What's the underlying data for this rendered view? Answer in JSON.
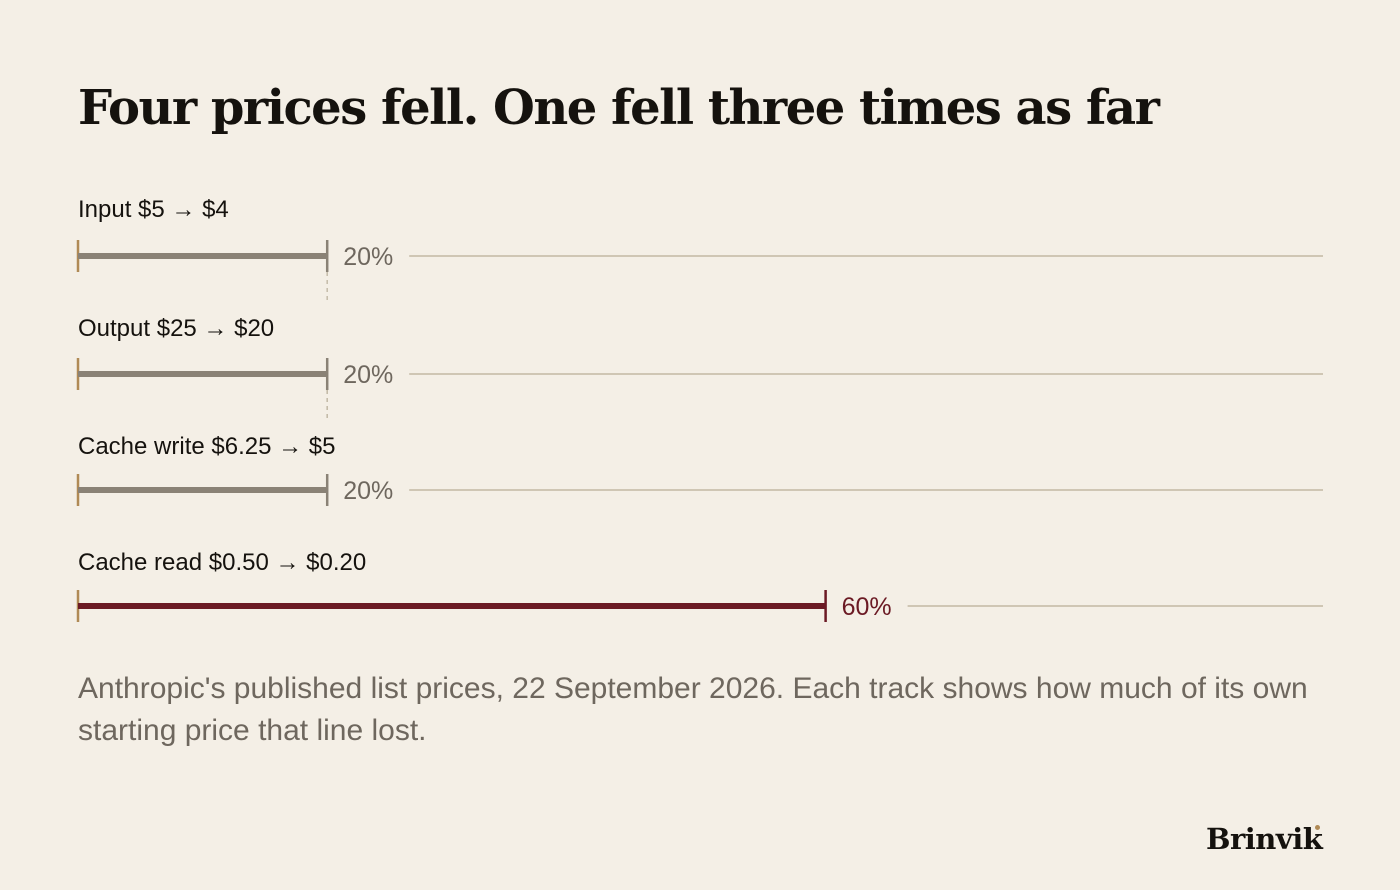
{
  "title": "Four prices fell. One fell three times as far",
  "chart_data": {
    "type": "bar",
    "orientation": "horizontal",
    "categories": [
      "Input $5 → $4",
      "Output $25 → $20",
      "Cache write $6.25 → $5",
      "Cache read $0.50 → $0.20"
    ],
    "values": [
      20,
      20,
      20,
      60
    ],
    "value_labels": [
      "20%",
      "20%",
      "20%",
      "60%"
    ],
    "xlim": [
      0,
      100
    ],
    "highlight_index": 3,
    "colors": {
      "muted_bar": "#8a8276",
      "highlight_bar": "#6b1a24",
      "muted_label": "#6e675e",
      "track": "#cfc6b4",
      "start_tick": "#b08a55",
      "guide": "#c4bba9"
    }
  },
  "caption": "Anthropic's published list prices, 22 September 2026. Each track shows how much of its own starting price that line lost.",
  "brand": "Brinvik"
}
